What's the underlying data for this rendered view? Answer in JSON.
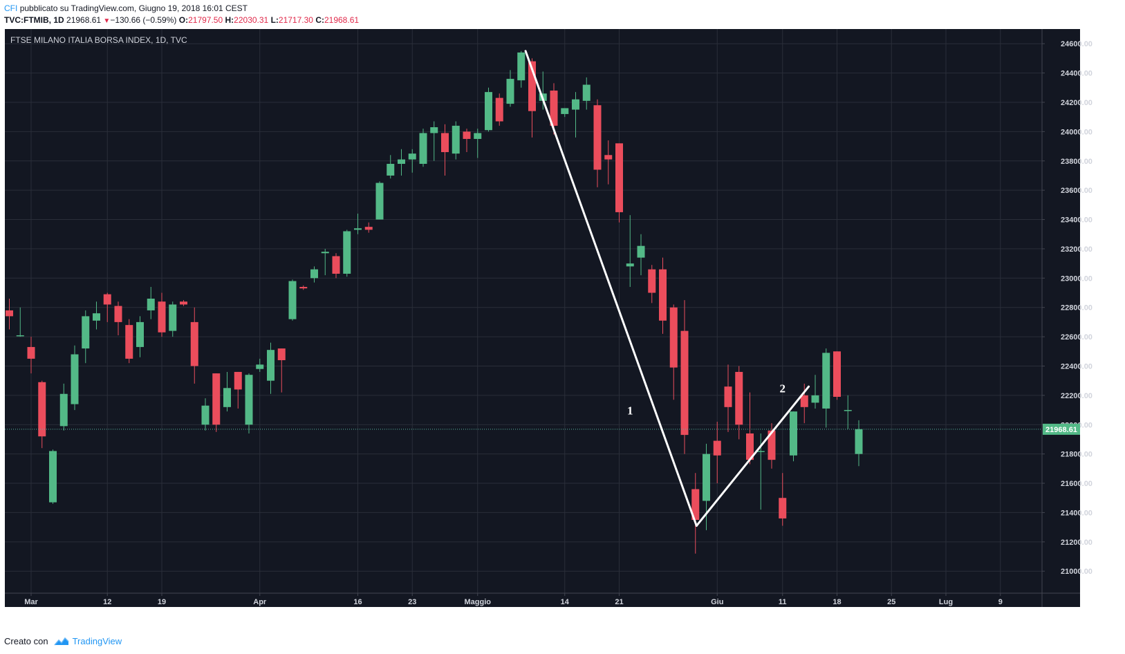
{
  "header": {
    "brand": "CFI",
    "published": "pubblicato su TradingView.com, Giugno 19, 2018 16:01 CEST",
    "symbol": "TVC:FTMIB, 1D",
    "last": "21968.61",
    "change_arrow": "▼",
    "change": "−130.66 (−0.59%)",
    "o_label": "O:",
    "o_value": "21797.50",
    "h_label": "H:",
    "h_value": "22030.31",
    "l_label": "L:",
    "l_value": "21717.30",
    "c_label": "C:",
    "c_value": "21968.61"
  },
  "footer": {
    "created_with": "Creato con",
    "logo_text": "TradingView",
    "logo_icon": "tradingview-cloud-icon"
  },
  "colors": {
    "background": "#131722",
    "grid": "#2a2e39",
    "up": "#53b987",
    "down": "#eb4d5c",
    "trendline": "#ffffff",
    "price_line": "#5ab9a5",
    "axis_text": "#d1d4dc"
  },
  "chart_data": {
    "type": "candlestick",
    "title": "FTSE MILANO ITALIA BORSA INDEX, 1D, TVC",
    "ylim": [
      20850,
      24700
    ],
    "yticks": [
      21000,
      21200,
      21400,
      21600,
      21800,
      22000,
      22200,
      22400,
      22600,
      22800,
      23000,
      23200,
      23400,
      23600,
      23800,
      24000,
      24200,
      24400,
      24600
    ],
    "ytick_labels": [
      "21000.00",
      "21200.00",
      "21400.00",
      "21600.00",
      "21800.00",
      "22000.00",
      "22200.00",
      "22400.00",
      "22600.00",
      "22800.00",
      "23000.00",
      "23200.00",
      "23400.00",
      "23600.00",
      "23800.00",
      "24000.00",
      "24200.00",
      "24400.00",
      "24600.00"
    ],
    "xtick_labels": [
      {
        "label": "Mar",
        "index": 2
      },
      {
        "label": "12",
        "index": 9
      },
      {
        "label": "19",
        "index": 14
      },
      {
        "label": "Apr",
        "index": 23
      },
      {
        "label": "16",
        "index": 32
      },
      {
        "label": "23",
        "index": 37
      },
      {
        "label": "Maggio",
        "index": 43
      },
      {
        "label": "14",
        "index": 51
      },
      {
        "label": "21",
        "index": 56
      },
      {
        "label": "Giu",
        "index": 65
      },
      {
        "label": "11",
        "index": 71
      },
      {
        "label": "18",
        "index": 76
      },
      {
        "label": "25",
        "index": 81
      },
      {
        "label": "Lug",
        "index": 86
      },
      {
        "label": "9",
        "index": 91
      }
    ],
    "last_price": 21968.61,
    "last_price_label": "21968.61",
    "candles": [
      {
        "o": 22780,
        "h": 22860,
        "l": 22650,
        "c": 22740
      },
      {
        "o": 22610,
        "h": 22800,
        "l": 22600,
        "c": 22610
      },
      {
        "o": 22530,
        "h": 22600,
        "l": 22350,
        "c": 22450
      },
      {
        "o": 22290,
        "h": 22300,
        "l": 21840,
        "c": 21920
      },
      {
        "o": 21470,
        "h": 21830,
        "l": 21460,
        "c": 21820
      },
      {
        "o": 21990,
        "h": 22280,
        "l": 21960,
        "c": 22210
      },
      {
        "o": 22140,
        "h": 22540,
        "l": 22100,
        "c": 22480
      },
      {
        "o": 22520,
        "h": 22780,
        "l": 22420,
        "c": 22740
      },
      {
        "o": 22710,
        "h": 22840,
        "l": 22650,
        "c": 22760
      },
      {
        "o": 22890,
        "h": 22900,
        "l": 22700,
        "c": 22820
      },
      {
        "o": 22810,
        "h": 22840,
        "l": 22610,
        "c": 22700
      },
      {
        "o": 22680,
        "h": 22720,
        "l": 22420,
        "c": 22450
      },
      {
        "o": 22530,
        "h": 22740,
        "l": 22460,
        "c": 22700
      },
      {
        "o": 22780,
        "h": 22940,
        "l": 22720,
        "c": 22860
      },
      {
        "o": 22840,
        "h": 22900,
        "l": 22600,
        "c": 22630
      },
      {
        "o": 22640,
        "h": 22840,
        "l": 22600,
        "c": 22820
      },
      {
        "o": 22840,
        "h": 22850,
        "l": 22810,
        "c": 22820
      },
      {
        "o": 22700,
        "h": 22800,
        "l": 22280,
        "c": 22400
      },
      {
        "o": 22000,
        "h": 22180,
        "l": 21960,
        "c": 22130
      },
      {
        "o": 22350,
        "h": 22350,
        "l": 21950,
        "c": 22000
      },
      {
        "o": 22120,
        "h": 22360,
        "l": 22090,
        "c": 22250
      },
      {
        "o": 22360,
        "h": 22360,
        "l": 22110,
        "c": 22240
      },
      {
        "o": 22000,
        "h": 22350,
        "l": 21940,
        "c": 22340
      },
      {
        "o": 22380,
        "h": 22450,
        "l": 22360,
        "c": 22410
      },
      {
        "o": 22300,
        "h": 22560,
        "l": 22210,
        "c": 22510
      },
      {
        "o": 22520,
        "h": 22520,
        "l": 22220,
        "c": 22440
      },
      {
        "o": 22720,
        "h": 22990,
        "l": 22710,
        "c": 22980
      },
      {
        "o": 22940,
        "h": 22950,
        "l": 22920,
        "c": 22930
      },
      {
        "o": 23000,
        "h": 23080,
        "l": 22970,
        "c": 23060
      },
      {
        "o": 23170,
        "h": 23200,
        "l": 23020,
        "c": 23180
      },
      {
        "o": 23150,
        "h": 23170,
        "l": 23000,
        "c": 23030
      },
      {
        "o": 23030,
        "h": 23330,
        "l": 23010,
        "c": 23320
      },
      {
        "o": 23330,
        "h": 23440,
        "l": 23300,
        "c": 23340
      },
      {
        "o": 23350,
        "h": 23380,
        "l": 23310,
        "c": 23330
      },
      {
        "o": 23400,
        "h": 23660,
        "l": 23400,
        "c": 23650
      },
      {
        "o": 23700,
        "h": 23840,
        "l": 23680,
        "c": 23780
      },
      {
        "o": 23780,
        "h": 23880,
        "l": 23700,
        "c": 23810
      },
      {
        "o": 23810,
        "h": 23880,
        "l": 23720,
        "c": 23850
      },
      {
        "o": 23780,
        "h": 24020,
        "l": 23760,
        "c": 23990
      },
      {
        "o": 23990,
        "h": 24070,
        "l": 23800,
        "c": 24030
      },
      {
        "o": 23990,
        "h": 24050,
        "l": 23700,
        "c": 23860
      },
      {
        "o": 23850,
        "h": 24070,
        "l": 23810,
        "c": 24040
      },
      {
        "o": 24000,
        "h": 24020,
        "l": 23860,
        "c": 23950
      },
      {
        "o": 23950,
        "h": 24020,
        "l": 23820,
        "c": 23990
      },
      {
        "o": 24010,
        "h": 24300,
        "l": 24000,
        "c": 24270
      },
      {
        "o": 24230,
        "h": 24260,
        "l": 24040,
        "c": 24070
      },
      {
        "o": 24190,
        "h": 24420,
        "l": 24170,
        "c": 24360
      },
      {
        "o": 24350,
        "h": 24550,
        "l": 24300,
        "c": 24540
      },
      {
        "o": 24480,
        "h": 24500,
        "l": 23960,
        "c": 24140
      },
      {
        "o": 24210,
        "h": 24410,
        "l": 24150,
        "c": 24260
      },
      {
        "o": 24280,
        "h": 24330,
        "l": 23980,
        "c": 24040
      },
      {
        "o": 24120,
        "h": 24160,
        "l": 24100,
        "c": 24160
      },
      {
        "o": 24150,
        "h": 24270,
        "l": 23960,
        "c": 24220
      },
      {
        "o": 24210,
        "h": 24370,
        "l": 24150,
        "c": 24320
      },
      {
        "o": 24180,
        "h": 24220,
        "l": 23620,
        "c": 23740
      },
      {
        "o": 23840,
        "h": 23940,
        "l": 23640,
        "c": 23810
      },
      {
        "o": 23920,
        "h": 23920,
        "l": 23380,
        "c": 23450
      },
      {
        "o": 23080,
        "h": 23430,
        "l": 22940,
        "c": 23100
      },
      {
        "o": 23140,
        "h": 23300,
        "l": 23020,
        "c": 23220
      },
      {
        "o": 23060,
        "h": 23090,
        "l": 22830,
        "c": 22900
      },
      {
        "o": 23060,
        "h": 23140,
        "l": 22620,
        "c": 22710
      },
      {
        "o": 22800,
        "h": 22820,
        "l": 22170,
        "c": 22390
      },
      {
        "o": 22640,
        "h": 22850,
        "l": 21800,
        "c": 21930
      },
      {
        "o": 21560,
        "h": 21670,
        "l": 21120,
        "c": 21350
      },
      {
        "o": 21480,
        "h": 21870,
        "l": 21280,
        "c": 21800
      },
      {
        "o": 21890,
        "h": 22020,
        "l": 21600,
        "c": 21790
      },
      {
        "o": 22260,
        "h": 22410,
        "l": 21950,
        "c": 22120
      },
      {
        "o": 22360,
        "h": 22400,
        "l": 21900,
        "c": 22000
      },
      {
        "o": 21940,
        "h": 22220,
        "l": 21730,
        "c": 21760
      },
      {
        "o": 21820,
        "h": 21940,
        "l": 21420,
        "c": 21820
      },
      {
        "o": 21960,
        "h": 22010,
        "l": 21700,
        "c": 21760
      },
      {
        "o": 21500,
        "h": 21670,
        "l": 21310,
        "c": 21360
      },
      {
        "o": 21790,
        "h": 22090,
        "l": 21750,
        "c": 22090
      },
      {
        "o": 22200,
        "h": 22280,
        "l": 22010,
        "c": 22120
      },
      {
        "o": 22150,
        "h": 22340,
        "l": 22110,
        "c": 22200
      },
      {
        "o": 22110,
        "h": 22520,
        "l": 21980,
        "c": 22490
      },
      {
        "o": 22500,
        "h": 22500,
        "l": 22170,
        "c": 22190
      },
      {
        "o": 22100,
        "h": 22200,
        "l": 21970,
        "c": 22100
      },
      {
        "o": 21800,
        "h": 22030,
        "l": 21717,
        "c": 21969
      }
    ],
    "annotations": [
      {
        "label": "1",
        "index": 57,
        "price": 22070
      },
      {
        "label": "2",
        "index": 71,
        "price": 22220
      }
    ],
    "trendlines": [
      {
        "from": {
          "index": 47.4,
          "price": 24550
        },
        "to": {
          "index": 63.1,
          "price": 21310
        }
      },
      {
        "from": {
          "index": 63.1,
          "price": 21310
        },
        "to": {
          "index": 73.4,
          "price": 22260
        }
      }
    ]
  }
}
